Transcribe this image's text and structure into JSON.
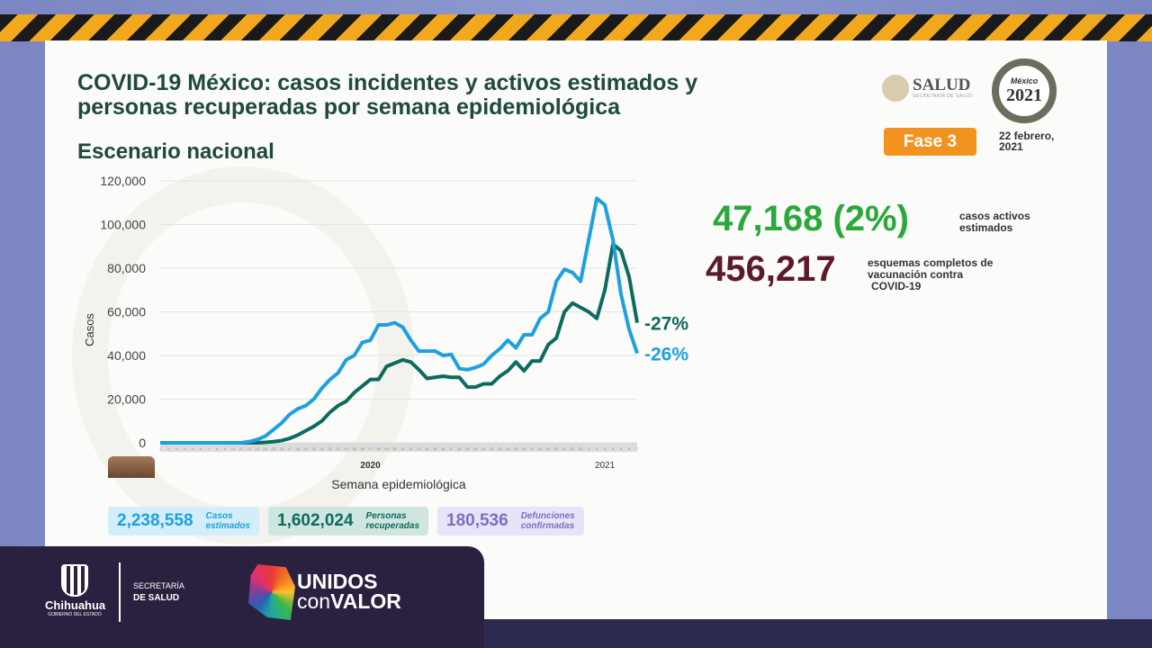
{
  "title_line1": "COVID-19 México: casos incidentes y activos estimados y",
  "title_line2": "personas recuperadas por semana epidemiológica",
  "subtitle": "Escenario nacional",
  "header": {
    "salud": "SALUD",
    "salud_sub": "SECRETARÍA DE SALUD",
    "logo_year": "2021",
    "logo_top": "México",
    "phase": "Fase 3",
    "date_line1": "22 febrero,",
    "date_line2": "2021"
  },
  "stats": {
    "active_value": "47,168 (2%)",
    "active_label1": "casos activos",
    "active_label2": "estimados",
    "vaccine_value": "456,217",
    "vaccine_label1": "esquemas completos de",
    "vaccine_label2": "vacunación contra",
    "vaccine_label3": "COVID-19"
  },
  "totals": [
    {
      "value": "2,238,558",
      "label1": "Casos",
      "label2": "estimados",
      "color": "#1ea0e0",
      "bg": "#d4eef9"
    },
    {
      "value": "1,602,024",
      "label1": "Personas",
      "label2": "recuperadas",
      "color": "#0d6b5e",
      "bg": "#cfe6e0"
    },
    {
      "value": "180,536",
      "label1": "Defunciones",
      "label2": "confirmadas",
      "color": "#7b6fc8",
      "bg": "#e6e4f6"
    }
  ],
  "footer": {
    "state": "Chihuahua",
    "state_sub": "GOBIERNO DEL ESTADO",
    "sec1": "SECRETARÍA",
    "sec2": "DE SALUD",
    "uni1": "UNIDOS",
    "uni2a": "con",
    "uni2b": "VALOR"
  },
  "chart_data": {
    "type": "line",
    "xlabel": "Semana epidemiológica",
    "ylabel": "Casos",
    "ylim": [
      0,
      120000
    ],
    "yticks": [
      "0",
      "20,000",
      "40,000",
      "60,000",
      "80,000",
      "100,000",
      "120,000"
    ],
    "year_labels": [
      "2020",
      "2021"
    ],
    "grid": true,
    "series": [
      {
        "color": "#1ea0e0",
        "end_label": "-26%",
        "values": [
          0,
          0,
          0,
          0,
          0,
          0,
          0,
          0,
          0,
          0,
          0,
          500,
          1500,
          3000,
          6000,
          9000,
          13000,
          15500,
          17000,
          20000,
          25000,
          29000,
          32000,
          38000,
          40000,
          46000,
          47000,
          54000,
          54000,
          55000,
          53000,
          47000,
          42000,
          42000,
          42000,
          40000,
          40500,
          34000,
          33500,
          34500,
          36000,
          40000,
          43000,
          47000,
          43500,
          49500,
          49500,
          57000,
          60000,
          74000,
          79500,
          78000,
          74000,
          93000,
          112000,
          109000,
          93000,
          68000,
          52000,
          41000
        ]
      },
      {
        "color": "#0d6b5e",
        "end_label": "-27%",
        "values": [
          0,
          0,
          0,
          0,
          0,
          0,
          0,
          0,
          0,
          0,
          0,
          0,
          0,
          200,
          500,
          1000,
          2000,
          3500,
          5500,
          7500,
          10000,
          14000,
          17000,
          19000,
          23000,
          26000,
          29000,
          29000,
          35000,
          36500,
          38000,
          37000,
          33500,
          29500,
          30000,
          30500,
          30000,
          30000,
          25500,
          25500,
          27000,
          27000,
          30500,
          33000,
          37000,
          33000,
          37500,
          37500,
          45000,
          48000,
          60000,
          64000,
          62000,
          60000,
          57000,
          70000,
          91000,
          88000,
          76000,
          55000
        ]
      }
    ]
  }
}
